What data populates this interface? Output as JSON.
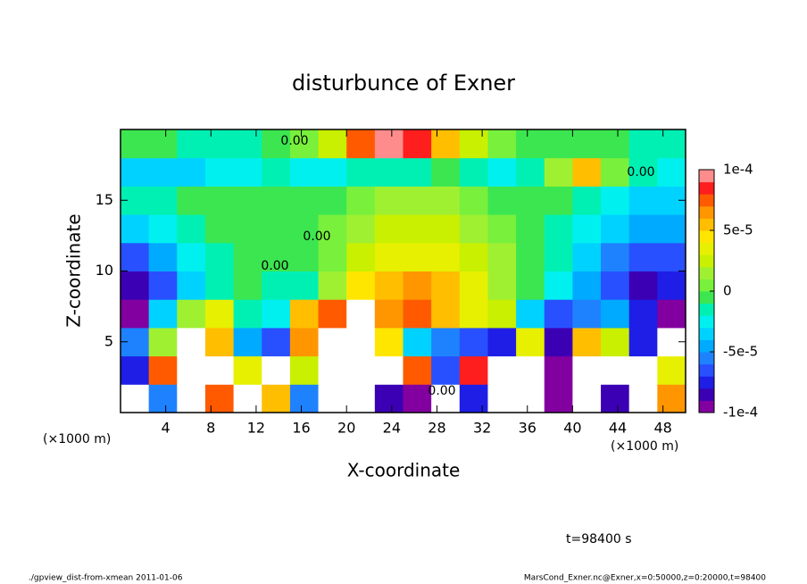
{
  "chart_data": {
    "type": "heatmap",
    "title": "disturbunce of Exner",
    "x_label": "X-coordinate",
    "y_label": "Z-coordinate",
    "x_unit": "(×1000 m)",
    "y_unit": "(×1000 m)",
    "time_label": "t=98400 s",
    "footer_left": "./gpview_dist-from-xmean  2011-01-06",
    "footer_right": "MarsCond_Exner.nc@Exner,x=0:50000,z=0:20000,t=98400",
    "contour_labels": [
      "0.00",
      "0.00",
      "0.00",
      "0.00",
      "0.00"
    ],
    "xlim": [
      0,
      50
    ],
    "xticks": [
      4,
      8,
      12,
      16,
      20,
      24,
      28,
      32,
      36,
      40,
      44,
      48
    ],
    "ylim": [
      0,
      20
    ],
    "yticks": [
      5,
      10,
      15
    ],
    "x": [
      1.25,
      3.75,
      6.25,
      8.75,
      11.25,
      13.75,
      16.25,
      18.75,
      21.25,
      23.75,
      26.25,
      28.75,
      31.25,
      33.75,
      36.25,
      38.75,
      41.25,
      43.75,
      46.25,
      48.75
    ],
    "y": [
      1,
      3,
      5,
      7,
      9,
      11,
      13,
      15,
      17,
      19
    ],
    "values": [
      [
        -0.00011,
        -5e-05,
        -0.00011,
        8e-05,
        -0.00011,
        6e-05,
        -5e-05,
        0.00011,
        -0.00011,
        -8e-05,
        -9e-05,
        -0.00011,
        -7e-05,
        -0.00011,
        -0.00011,
        -0.0001,
        -0.00011,
        -8e-05,
        -0.00011,
        7e-05
      ],
      [
        -7e-05,
        8e-05,
        -0.00011,
        -0.00011,
        4e-05,
        -0.00011,
        3e-05,
        -0.00011,
        -0.00011,
        -0.00011,
        8e-05,
        -6e-05,
        9e-05,
        -0.00011,
        -0.00011,
        -9e-05,
        -0.00011,
        -0.00011,
        -0.00011,
        4e-05
      ],
      [
        -5e-05,
        2e-05,
        -0.00011,
        6e-05,
        -4e-05,
        -6e-05,
        7e-05,
        -0.00011,
        -0.00011,
        5e-05,
        -3e-05,
        -5e-05,
        -6e-05,
        -7e-05,
        4e-05,
        -8e-05,
        6e-05,
        3e-05,
        -7e-05,
        -0.00011
      ],
      [
        -9e-05,
        -3e-05,
        2e-05,
        4e-05,
        -1e-05,
        -2e-05,
        6e-05,
        8e-05,
        -0.00011,
        7e-05,
        8e-05,
        6e-05,
        4e-05,
        3e-05,
        -3e-05,
        -6e-05,
        -5e-05,
        -4e-05,
        -7e-05,
        -9e-05
      ],
      [
        -8e-05,
        -6e-05,
        -3e-05,
        -1e-05,
        0,
        -1e-05,
        -1e-05,
        2e-05,
        5e-05,
        6e-05,
        7e-05,
        6e-05,
        4e-05,
        2e-05,
        0,
        -2e-05,
        -4e-05,
        -6e-05,
        -8e-05,
        -7e-05
      ],
      [
        -6e-05,
        -4e-05,
        -2e-05,
        -1e-05,
        0,
        0,
        0,
        1e-05,
        3e-05,
        4e-05,
        4e-05,
        4e-05,
        3e-05,
        2e-05,
        0,
        -1e-05,
        -3e-05,
        -5e-05,
        -6e-05,
        -6e-05
      ],
      [
        -3e-05,
        -2e-05,
        -1e-05,
        0,
        0,
        0,
        0,
        1e-05,
        2e-05,
        3e-05,
        3e-05,
        3e-05,
        2e-05,
        1e-05,
        0,
        -1e-05,
        -2e-05,
        -3e-05,
        -4e-05,
        -4e-05
      ],
      [
        -1e-05,
        -1e-05,
        0,
        0,
        0,
        0,
        0,
        0,
        1e-05,
        2e-05,
        2e-05,
        2e-05,
        1e-05,
        0,
        0,
        0,
        -1e-05,
        -2e-05,
        -3e-05,
        -3e-05
      ],
      [
        -3e-05,
        -3e-05,
        -3e-05,
        -2e-05,
        -2e-05,
        -1e-05,
        -2e-05,
        -2e-05,
        -1e-05,
        -1e-05,
        -1e-05,
        0,
        -1e-05,
        -2e-05,
        -1e-05,
        2e-05,
        6e-05,
        1e-05,
        -1e-05,
        -2e-05
      ],
      [
        0,
        0,
        -1e-05,
        -1e-05,
        -1e-05,
        0,
        1e-05,
        3e-05,
        8e-05,
        0.0001,
        9e-05,
        6e-05,
        3e-05,
        1e-05,
        0,
        0,
        0,
        0,
        -1e-05,
        -1e-05
      ]
    ],
    "levels": [
      -0.0001,
      -9e-05,
      -8e-05,
      -7e-05,
      -6e-05,
      -5e-05,
      -4e-05,
      -3e-05,
      -2e-05,
      -1e-05,
      0,
      1e-05,
      2e-05,
      3e-05,
      4e-05,
      5e-05,
      6e-05,
      7e-05,
      8e-05,
      9e-05,
      0.0001
    ],
    "colors": [
      "#8200a0",
      "#3c00b4",
      "#1e1ee6",
      "#2850ff",
      "#1e82ff",
      "#00aaff",
      "#00d2ff",
      "#00f0f0",
      "#00f0b4",
      "#3ce650",
      "#78f03c",
      "#a0f032",
      "#c8f000",
      "#e6f000",
      "#ffe600",
      "#ffbe00",
      "#ff9600",
      "#ff5a00",
      "#ff1e1e",
      "#ff8c8c"
    ],
    "out_of_range_color": "#ffffff",
    "colorbar_ticks": [
      {
        "value": 0.0001,
        "label": "1e-4"
      },
      {
        "value": 5e-05,
        "label": "5e-5"
      },
      0,
      {
        "value": -5e-05,
        "label": "-5e-5"
      },
      {
        "value": -0.0001,
        "label": "-1e-4"
      }
    ]
  }
}
